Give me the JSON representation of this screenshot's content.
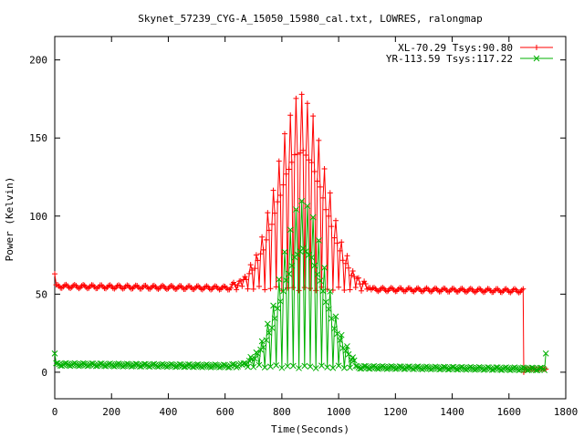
{
  "chart_data": {
    "type": "line",
    "title": "Skynet_57239_CYG-A_15050_15980_cal.txt, LOWRES, ralongmap",
    "xlabel": "Time(Seconds)",
    "ylabel": "Power (Kelvin)",
    "xlim": [
      0,
      1800
    ],
    "ylim": [
      -17,
      215
    ],
    "xticks": [
      0,
      200,
      400,
      600,
      800,
      1000,
      1200,
      1400,
      1600,
      1800
    ],
    "yticks": [
      0,
      50,
      100,
      150,
      200
    ],
    "grid": false,
    "legend_position": "top-right",
    "series": [
      {
        "name": "XL-70.29 Tsys:90.80",
        "color": "#ff0000",
        "marker": "plus",
        "model": {
          "baseline_start": 55,
          "baseline_end": 52,
          "ripple_amp": 1.2,
          "ripple_period": 31,
          "peak_center": 868,
          "peak_sigma": 85,
          "peak_amp": 124,
          "scan_start": 620,
          "scan_end": 1110,
          "scan_period": 20,
          "drop_at": 1650,
          "drop_to": 2,
          "end": 1730,
          "start_spike": 63,
          "end_spike": 0
        }
      },
      {
        "name": "YR-113.59 Tsys:117.22",
        "color": "#00b000",
        "marker": "cross",
        "model": {
          "baseline_start": 5,
          "baseline_end": 2,
          "ripple_amp": 0.9,
          "ripple_period": 31,
          "peak_center": 875,
          "peak_sigma": 75,
          "peak_amp": 106,
          "scan_start": 620,
          "scan_end": 1060,
          "scan_period": 20,
          "drop_at": null,
          "drop_to": null,
          "end": 1730,
          "start_spike": 12,
          "end_spike": 12
        }
      }
    ]
  }
}
